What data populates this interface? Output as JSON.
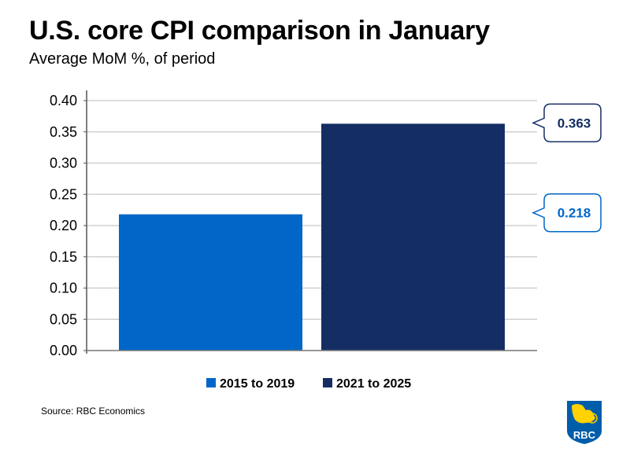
{
  "title": "U.S. core CPI comparison in January",
  "subtitle": "Average MoM %, of period",
  "source": "Source: RBC Economics",
  "logo_text": "RBC",
  "chart_data": {
    "type": "bar",
    "title": "U.S. core CPI comparison in January",
    "subtitle": "Average MoM %, of period",
    "ylim": [
      0,
      0.4
    ],
    "yticks": [
      "0.00",
      "0.05",
      "0.10",
      "0.15",
      "0.20",
      "0.25",
      "0.30",
      "0.35",
      "0.40"
    ],
    "grid": true,
    "legend_placement": "bottom",
    "series": [
      {
        "name": "2015 to 2019",
        "value": 0.218,
        "label": "0.218",
        "color": "#0066c8"
      },
      {
        "name": "2021 to 2025",
        "value": 0.363,
        "label": "0.363",
        "color": "#142e64"
      }
    ]
  }
}
